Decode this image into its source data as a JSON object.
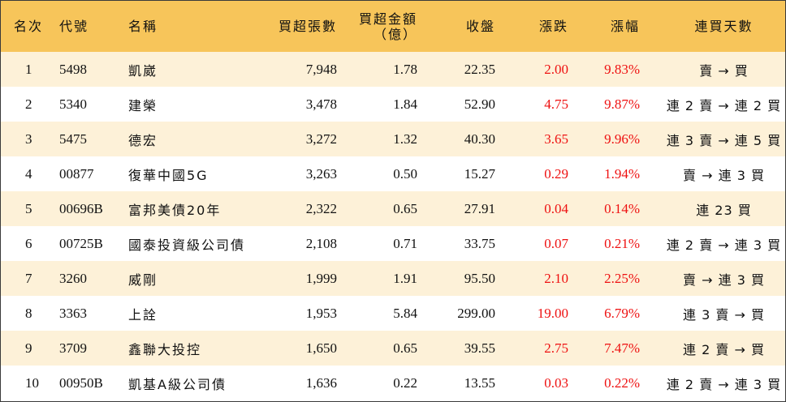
{
  "headers": {
    "rank": "名次",
    "code": "代號",
    "name": "名稱",
    "net_lots": "買超張數",
    "net_amount_line1": "買超金額",
    "net_amount_line2": "（億）",
    "close": "收盤",
    "change": "漲跌",
    "pct": "漲幅",
    "streak": "連買天數"
  },
  "rows": [
    {
      "rank": "1",
      "code": "5498",
      "name": "凱崴",
      "net_lots": "7,948",
      "net_amount": "1.78",
      "close": "22.35",
      "change": "2.00",
      "pct": "9.83%",
      "streak": "賣 → 買"
    },
    {
      "rank": "2",
      "code": "5340",
      "name": "建榮",
      "net_lots": "3,478",
      "net_amount": "1.84",
      "close": "52.90",
      "change": "4.75",
      "pct": "9.87%",
      "streak": "連 2 賣 → 連 2 買"
    },
    {
      "rank": "3",
      "code": "5475",
      "name": "德宏",
      "net_lots": "3,272",
      "net_amount": "1.32",
      "close": "40.30",
      "change": "3.65",
      "pct": "9.96%",
      "streak": "連 3 賣 → 連 5 買"
    },
    {
      "rank": "4",
      "code": "00877",
      "name": "復華中國5G",
      "net_lots": "3,263",
      "net_amount": "0.50",
      "close": "15.27",
      "change": "0.29",
      "pct": "1.94%",
      "streak": "賣 → 連 3 買"
    },
    {
      "rank": "5",
      "code": "00696B",
      "name": "富邦美債20年",
      "net_lots": "2,322",
      "net_amount": "0.65",
      "close": "27.91",
      "change": "0.04",
      "pct": "0.14%",
      "streak": "連 23 買"
    },
    {
      "rank": "6",
      "code": "00725B",
      "name": "國泰投資級公司債",
      "net_lots": "2,108",
      "net_amount": "0.71",
      "close": "33.75",
      "change": "0.07",
      "pct": "0.21%",
      "streak": "連 2 賣 → 連 3 買"
    },
    {
      "rank": "7",
      "code": "3260",
      "name": "威剛",
      "net_lots": "1,999",
      "net_amount": "1.91",
      "close": "95.50",
      "change": "2.10",
      "pct": "2.25%",
      "streak": "賣 → 連 3 買"
    },
    {
      "rank": "8",
      "code": "3363",
      "name": "上詮",
      "net_lots": "1,953",
      "net_amount": "5.84",
      "close": "299.00",
      "change": "19.00",
      "pct": "6.79%",
      "streak": "連 3 賣 → 買"
    },
    {
      "rank": "9",
      "code": "3709",
      "name": "鑫聯大投控",
      "net_lots": "1,650",
      "net_amount": "0.65",
      "close": "39.55",
      "change": "2.75",
      "pct": "7.47%",
      "streak": "連 2 賣 → 買"
    },
    {
      "rank": "10",
      "code": "00950B",
      "name": "凱基A級公司債",
      "net_lots": "1,636",
      "net_amount": "0.22",
      "close": "13.55",
      "change": "0.03",
      "pct": "0.22%",
      "streak": "連 2 賣 → 連 3 買"
    }
  ],
  "colors": {
    "header_bg": "#f7c55a",
    "odd_row_bg": "#fdf1d8",
    "even_row_bg": "#ffffff",
    "up_color": "#ee1111"
  }
}
